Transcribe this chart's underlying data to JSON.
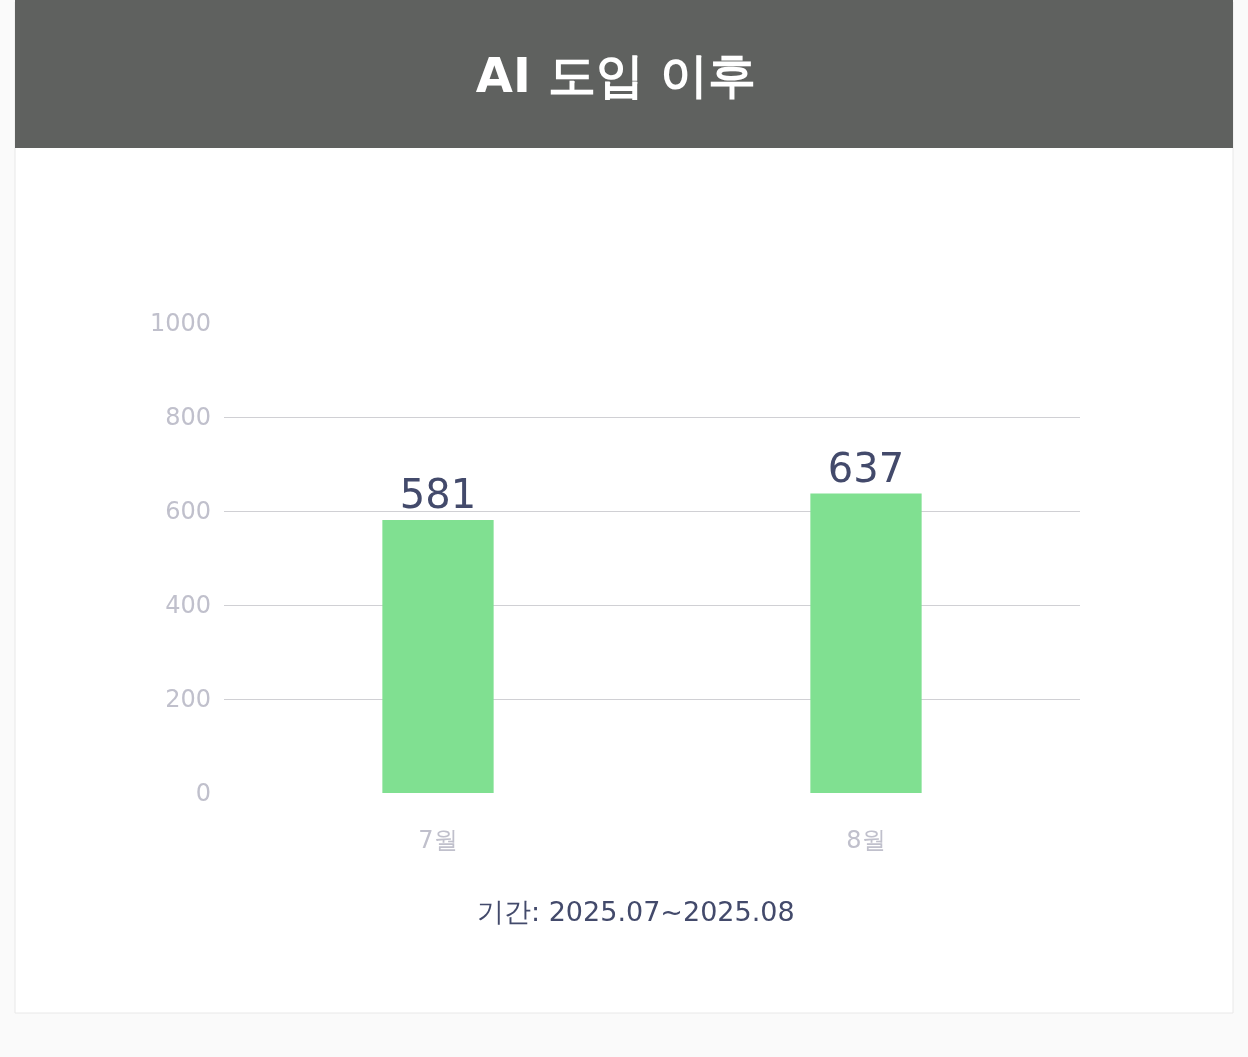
{
  "chart_data": {
    "type": "bar",
    "title": "AI 도입 이후",
    "categories": [
      "7월",
      "8월"
    ],
    "series": [
      {
        "color": "#80e091",
        "values": [
          581,
          637
        ]
      }
    ],
    "ylim": [
      0,
      1000
    ],
    "yticks": [
      0,
      200,
      400,
      600,
      800,
      1000
    ],
    "grid": "y",
    "data_labels": true,
    "annotations": [
      "기간: 2025.07~2025.08"
    ]
  }
}
